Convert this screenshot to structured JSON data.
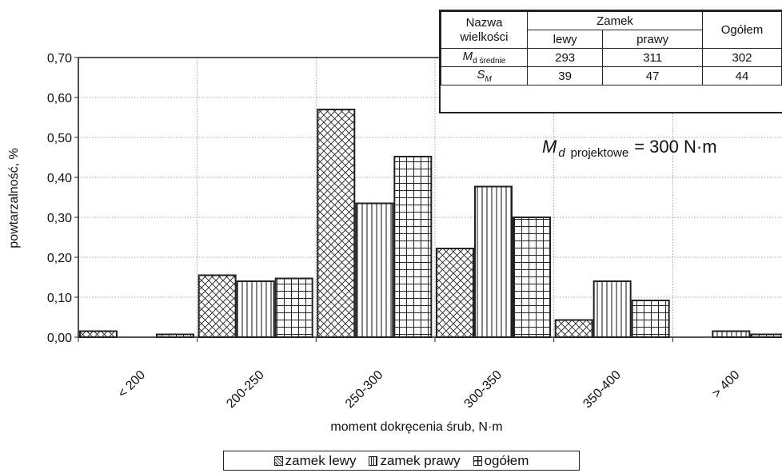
{
  "chart_data": {
    "type": "bar",
    "title": "",
    "xlabel": "moment dokręcenia śrub, N·m",
    "ylabel": "powtarzalność, %",
    "ylim": [
      0,
      0.7
    ],
    "yticks": [
      "0,00",
      "0,10",
      "0,20",
      "0,30",
      "0,40",
      "0,50",
      "0,60",
      "0,70"
    ],
    "grid": true,
    "categories": [
      "< 200",
      "200-250",
      "250-300",
      "300-350",
      "350-400",
      "> 400"
    ],
    "series": [
      {
        "name": "zamek lewy",
        "pattern": "crosshatch",
        "values": [
          0.015,
          0.155,
          0.57,
          0.222,
          0.043,
          0.0
        ]
      },
      {
        "name": "zamek prawy",
        "pattern": "vertical",
        "values": [
          0.0,
          0.14,
          0.335,
          0.377,
          0.14,
          0.015
        ]
      },
      {
        "name": "ogółem",
        "pattern": "grid",
        "values": [
          0.007,
          0.147,
          0.452,
          0.3,
          0.092,
          0.007
        ]
      }
    ],
    "legend_position": "bottom",
    "annotation": {
      "symbol": "M",
      "subscript": "d",
      "label": "projektowe",
      "value": "= 300 N·m"
    }
  },
  "stats_table": {
    "name_header": "Nazwa wielkości",
    "group_header": "Zamek",
    "col_left": "lewy",
    "col_right": "prawy",
    "col_total": "Ogółem",
    "rows": [
      {
        "symbol": "M",
        "sub": "d średnie",
        "lewy": "293",
        "prawy": "311",
        "total": "302"
      },
      {
        "symbol": "S",
        "sub": "M",
        "lewy": "39",
        "prawy": "47",
        "total": "44"
      }
    ]
  },
  "legend": {
    "items": [
      {
        "label": "zamek lewy"
      },
      {
        "label": "zamek prawy"
      },
      {
        "label": "ogółem"
      }
    ]
  }
}
